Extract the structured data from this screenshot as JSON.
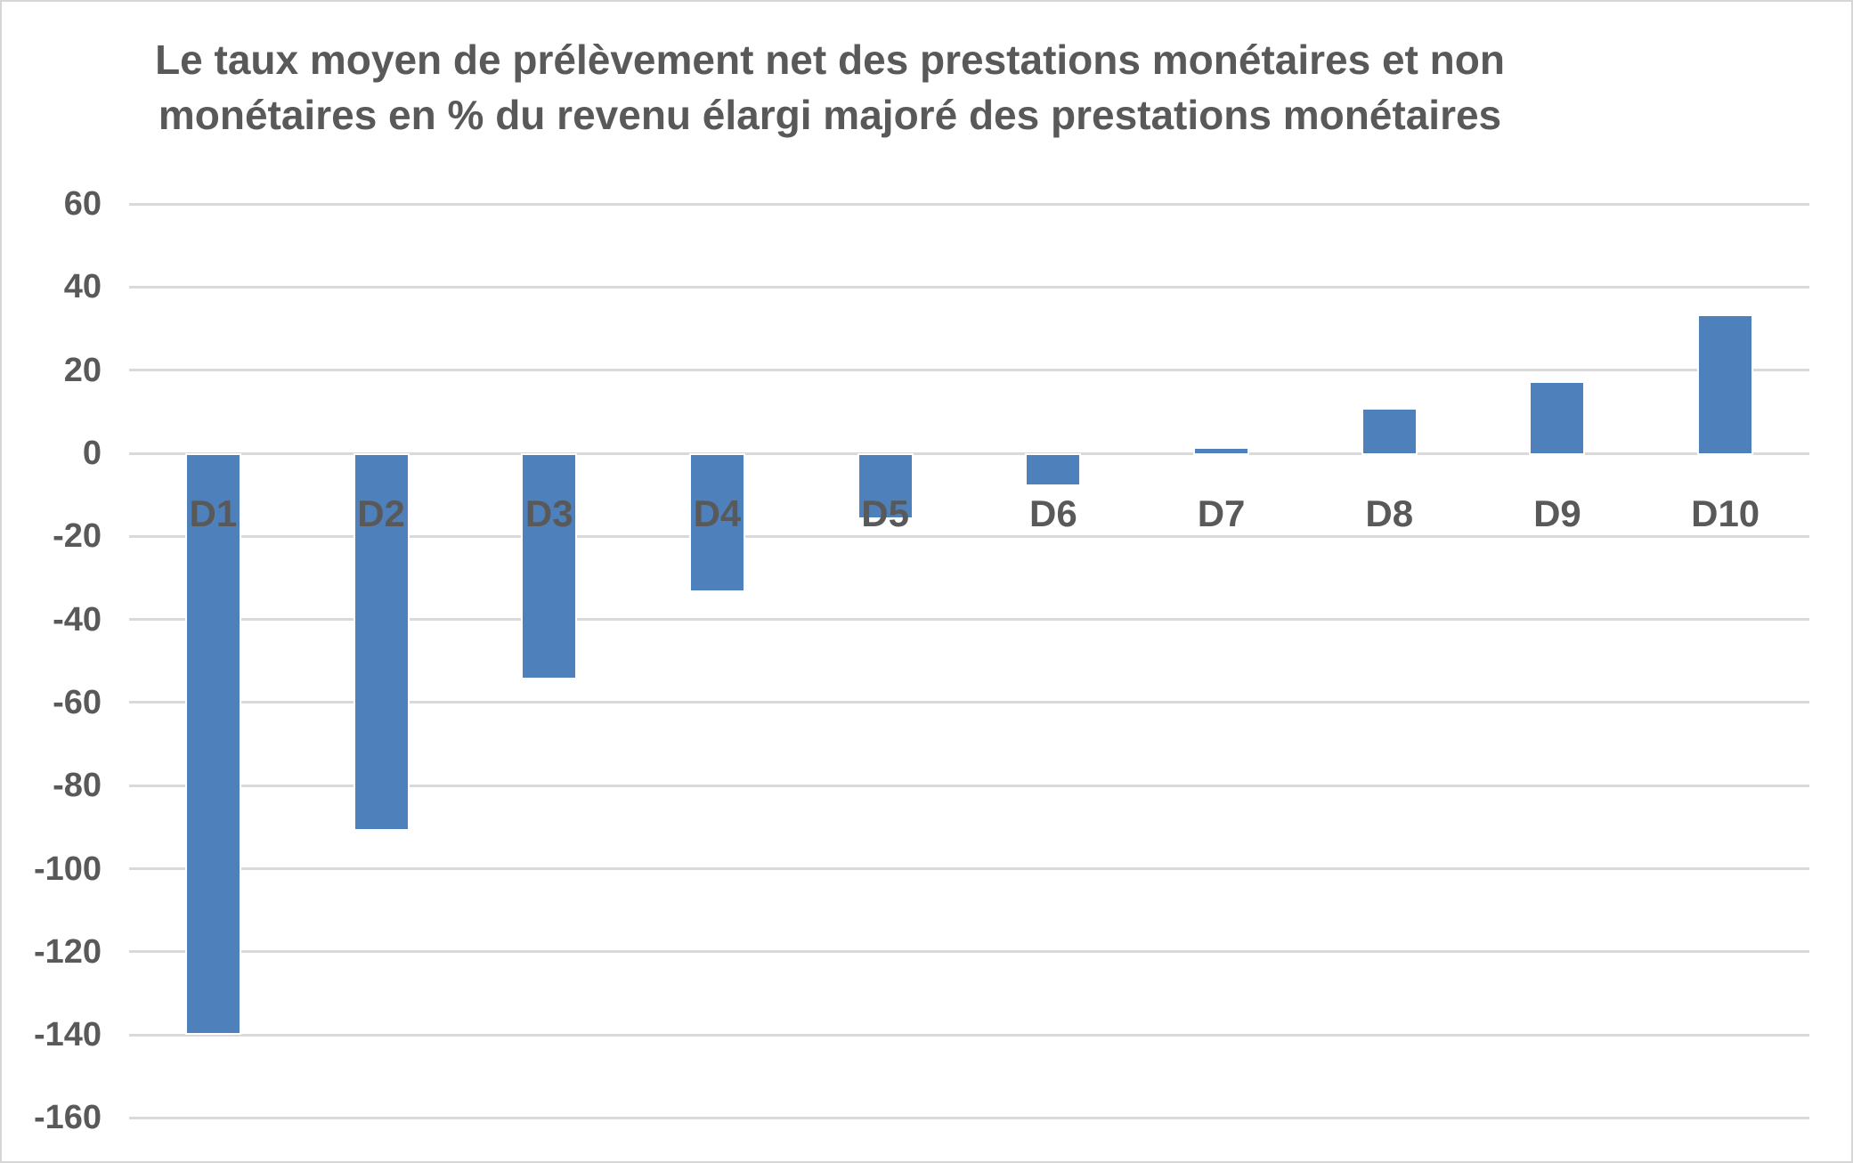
{
  "chart_data": {
    "type": "bar",
    "title": "Le taux moyen de prélèvement net des prestations monétaires et non monétaires en % du revenu élargi majoré des prestations monétaires",
    "title_lines": [
      "Le taux moyen de prélèvement net des prestations monétaires et non",
      "monétaires en % du revenu élargi majoré des prestations monétaires"
    ],
    "categories": [
      "D1",
      "D2",
      "D3",
      "D4",
      "D5",
      "D6",
      "D7",
      "D8",
      "D9",
      "D10"
    ],
    "values": [
      -139.5,
      -90.5,
      -54,
      -33,
      -15.5,
      -7.5,
      1,
      10.5,
      17,
      33
    ],
    "xlabel": "",
    "ylabel": "",
    "ylim": [
      -160,
      60
    ],
    "y_ticks": [
      60,
      40,
      20,
      0,
      -20,
      -40,
      -60,
      -80,
      -100,
      -120,
      -140,
      -160
    ],
    "grid": "horizontal-only",
    "legend_position": "none",
    "bar_color": "#4e81bc",
    "gridline_color": "#d9d9d9",
    "text_color": "#595959",
    "background_color": "#ffffff",
    "border_color": "#d6d6d6"
  }
}
